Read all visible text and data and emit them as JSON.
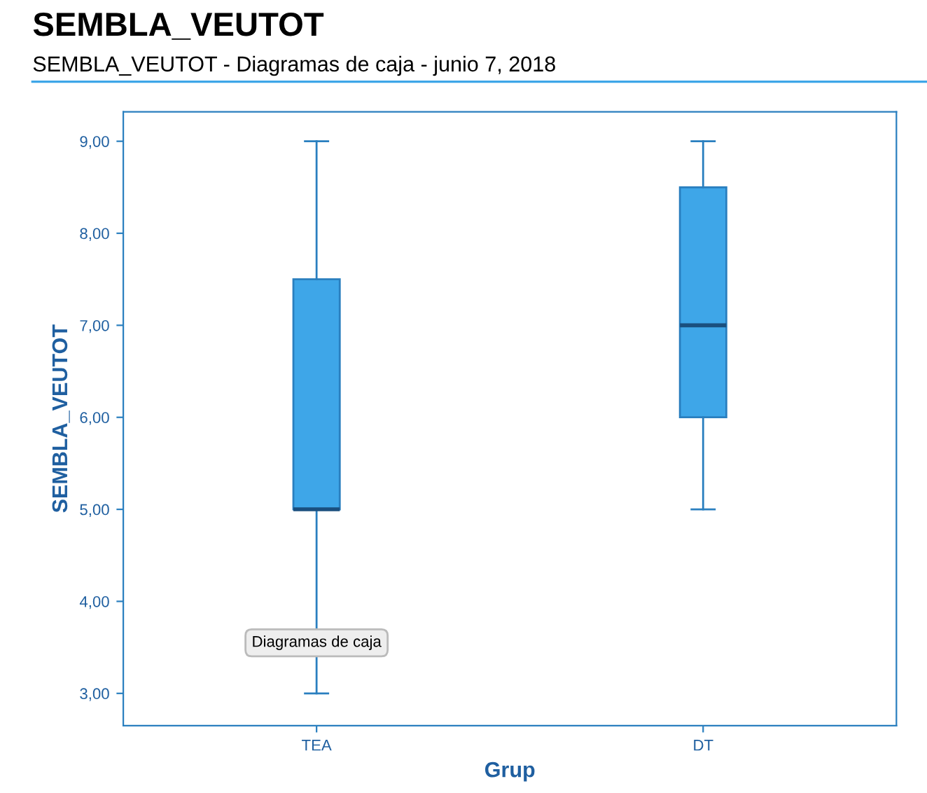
{
  "chart_data": {
    "type": "box",
    "title": "SEMBLA_VEUTOT",
    "subtitle": "SEMBLA_VEUTOT - Diagramas de caja - junio 7, 2018",
    "xlabel": "Grup",
    "ylabel": "SEMBLA_VEUTOT",
    "categories": [
      "TEA",
      "DT"
    ],
    "boxes": [
      {
        "low": 3,
        "q1": 5,
        "median": 5,
        "q3": 7.5,
        "high": 9
      },
      {
        "low": 5,
        "q1": 6,
        "median": 7,
        "q3": 8.5,
        "high": 9
      }
    ],
    "color": "#3ea6e8",
    "ylim": [
      2.65,
      9.32
    ],
    "yticks": [
      {
        "value": 3,
        "label": "3,00"
      },
      {
        "value": 4,
        "label": "4,00"
      },
      {
        "value": 5,
        "label": "5,00"
      },
      {
        "value": 6,
        "label": "6,00"
      },
      {
        "value": 7,
        "label": "7,00"
      },
      {
        "value": 8,
        "label": "8,00"
      },
      {
        "value": 9,
        "label": "9,00"
      }
    ],
    "annotations": [
      "Diagramas de caja"
    ],
    "grid": false,
    "legend": false
  }
}
